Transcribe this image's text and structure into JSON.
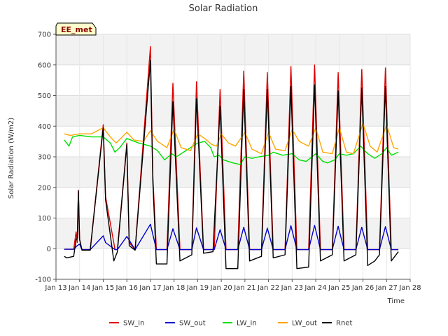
{
  "chart_data": {
    "type": "line",
    "title": "Solar Radiation",
    "xlabel": "Time",
    "ylabel": "Solar Radiation (W/m2)",
    "station_label": "EE_met",
    "ylim": [
      -100,
      700
    ],
    "xlim": [
      13,
      28
    ],
    "yticks": [
      -100,
      0,
      100,
      200,
      300,
      400,
      500,
      600,
      700
    ],
    "xticks": [
      {
        "value": 13,
        "label": "Jan 13"
      },
      {
        "value": 14,
        "label": "Jan 14"
      },
      {
        "value": 15,
        "label": "Jan 15"
      },
      {
        "value": 16,
        "label": "Jan 16"
      },
      {
        "value": 17,
        "label": "Jan 17"
      },
      {
        "value": 18,
        "label": "Jan 18"
      },
      {
        "value": 19,
        "label": "Jan 19"
      },
      {
        "value": 20,
        "label": "Jan 20"
      },
      {
        "value": 21,
        "label": "Jan 21"
      },
      {
        "value": 22,
        "label": "Jan 22"
      },
      {
        "value": 23,
        "label": "Jan 23"
      },
      {
        "value": 24,
        "label": "Jan 24"
      },
      {
        "value": 25,
        "label": "Jan 25"
      },
      {
        "value": 26,
        "label": "Jan 26"
      },
      {
        "value": 27,
        "label": "Jan 27"
      },
      {
        "value": 28,
        "label": "Jan 28"
      }
    ],
    "grid": true,
    "legend_position": "bottom",
    "series": [
      {
        "name": "SW_in",
        "color": "#e00000",
        "points": [
          [
            13.35,
            -2
          ],
          [
            13.75,
            -2
          ],
          [
            13.85,
            55
          ],
          [
            13.9,
            20
          ],
          [
            13.95,
            190
          ],
          [
            14.0,
            30
          ],
          [
            14.1,
            -3
          ],
          [
            14.45,
            -3
          ],
          [
            15.0,
            405
          ],
          [
            15.1,
            170
          ],
          [
            15.5,
            -3
          ],
          [
            15.6,
            -3
          ],
          [
            16.0,
            345
          ],
          [
            16.1,
            20
          ],
          [
            16.35,
            -3
          ],
          [
            17.0,
            660
          ],
          [
            17.1,
            240
          ],
          [
            17.25,
            -3
          ],
          [
            17.7,
            -3
          ],
          [
            17.95,
            540
          ],
          [
            18.25,
            -3
          ],
          [
            18.75,
            -3
          ],
          [
            18.95,
            545
          ],
          [
            19.25,
            -3
          ],
          [
            19.7,
            -3
          ],
          [
            19.95,
            520
          ],
          [
            20.2,
            -3
          ],
          [
            20.7,
            -3
          ],
          [
            20.95,
            580
          ],
          [
            21.2,
            -3
          ],
          [
            21.7,
            -3
          ],
          [
            21.95,
            575
          ],
          [
            22.2,
            -3
          ],
          [
            22.7,
            -3
          ],
          [
            22.95,
            595
          ],
          [
            23.2,
            -3
          ],
          [
            23.7,
            -3
          ],
          [
            23.95,
            600
          ],
          [
            24.2,
            -3
          ],
          [
            24.7,
            -3
          ],
          [
            24.95,
            575
          ],
          [
            25.2,
            -3
          ],
          [
            25.7,
            -3
          ],
          [
            25.95,
            585
          ],
          [
            26.2,
            -3
          ],
          [
            26.7,
            -3
          ],
          [
            26.95,
            590
          ],
          [
            27.2,
            -3
          ],
          [
            27.5,
            -3
          ]
        ]
      },
      {
        "name": "SW_out",
        "color": "#0000cc",
        "points": [
          [
            13.35,
            -2
          ],
          [
            13.75,
            -2
          ],
          [
            13.9,
            10
          ],
          [
            14.0,
            15
          ],
          [
            14.1,
            -3
          ],
          [
            14.45,
            -3
          ],
          [
            15.0,
            42
          ],
          [
            15.1,
            20
          ],
          [
            15.5,
            -3
          ],
          [
            15.6,
            -3
          ],
          [
            16.0,
            40
          ],
          [
            16.35,
            -3
          ],
          [
            17.0,
            80
          ],
          [
            17.25,
            -3
          ],
          [
            17.7,
            -3
          ],
          [
            17.95,
            65
          ],
          [
            18.25,
            -3
          ],
          [
            18.75,
            -3
          ],
          [
            18.95,
            68
          ],
          [
            19.25,
            -3
          ],
          [
            19.7,
            -3
          ],
          [
            19.95,
            62
          ],
          [
            20.2,
            -3
          ],
          [
            20.7,
            -3
          ],
          [
            20.95,
            70
          ],
          [
            21.2,
            -3
          ],
          [
            21.7,
            -3
          ],
          [
            21.95,
            67
          ],
          [
            22.2,
            -3
          ],
          [
            22.7,
            -3
          ],
          [
            22.95,
            75
          ],
          [
            23.2,
            -3
          ],
          [
            23.7,
            -3
          ],
          [
            23.95,
            76
          ],
          [
            24.2,
            -3
          ],
          [
            24.7,
            -3
          ],
          [
            24.95,
            73
          ],
          [
            25.2,
            -3
          ],
          [
            25.7,
            -3
          ],
          [
            25.95,
            70
          ],
          [
            26.2,
            -3
          ],
          [
            26.7,
            -3
          ],
          [
            26.95,
            72
          ],
          [
            27.2,
            -3
          ],
          [
            27.5,
            -3
          ]
        ]
      },
      {
        "name": "LW_in",
        "color": "#00e000",
        "points": [
          [
            13.35,
            355
          ],
          [
            13.55,
            335
          ],
          [
            13.7,
            365
          ],
          [
            14.0,
            370
          ],
          [
            14.5,
            365
          ],
          [
            15.0,
            365
          ],
          [
            15.3,
            345
          ],
          [
            15.5,
            315
          ],
          [
            15.7,
            330
          ],
          [
            16.0,
            360
          ],
          [
            16.5,
            345
          ],
          [
            17.0,
            335
          ],
          [
            17.3,
            320
          ],
          [
            17.6,
            290
          ],
          [
            17.9,
            310
          ],
          [
            18.1,
            300
          ],
          [
            18.4,
            315
          ],
          [
            18.7,
            330
          ],
          [
            19.0,
            345
          ],
          [
            19.3,
            350
          ],
          [
            19.55,
            330
          ],
          [
            19.7,
            300
          ],
          [
            19.9,
            305
          ],
          [
            20.1,
            290
          ],
          [
            20.5,
            280
          ],
          [
            20.8,
            275
          ],
          [
            21.0,
            300
          ],
          [
            21.3,
            295
          ],
          [
            21.6,
            300
          ],
          [
            22.0,
            305
          ],
          [
            22.2,
            315
          ],
          [
            22.6,
            305
          ],
          [
            23.0,
            310
          ],
          [
            23.3,
            290
          ],
          [
            23.6,
            285
          ],
          [
            24.0,
            310
          ],
          [
            24.3,
            285
          ],
          [
            24.5,
            280
          ],
          [
            24.8,
            290
          ],
          [
            25.0,
            310
          ],
          [
            25.3,
            305
          ],
          [
            25.6,
            310
          ],
          [
            25.9,
            335
          ],
          [
            26.2,
            310
          ],
          [
            26.5,
            295
          ],
          [
            26.8,
            310
          ],
          [
            27.0,
            330
          ],
          [
            27.2,
            305
          ],
          [
            27.5,
            315
          ]
        ]
      },
      {
        "name": "LW_out",
        "color": "#ffa500",
        "points": [
          [
            13.35,
            375
          ],
          [
            13.6,
            370
          ],
          [
            14.0,
            375
          ],
          [
            14.5,
            375
          ],
          [
            15.0,
            395
          ],
          [
            15.3,
            365
          ],
          [
            15.55,
            345
          ],
          [
            16.0,
            380
          ],
          [
            16.3,
            355
          ],
          [
            16.7,
            350
          ],
          [
            17.0,
            385
          ],
          [
            17.3,
            350
          ],
          [
            17.7,
            330
          ],
          [
            18.0,
            390
          ],
          [
            18.3,
            330
          ],
          [
            18.7,
            320
          ],
          [
            19.0,
            375
          ],
          [
            19.3,
            360
          ],
          [
            19.6,
            340
          ],
          [
            19.8,
            335
          ],
          [
            20.0,
            375
          ],
          [
            20.3,
            345
          ],
          [
            20.6,
            335
          ],
          [
            21.0,
            380
          ],
          [
            21.3,
            325
          ],
          [
            21.7,
            310
          ],
          [
            22.0,
            380
          ],
          [
            22.3,
            325
          ],
          [
            22.7,
            320
          ],
          [
            23.0,
            390
          ],
          [
            23.3,
            350
          ],
          [
            23.7,
            335
          ],
          [
            24.0,
            395
          ],
          [
            24.3,
            315
          ],
          [
            24.7,
            310
          ],
          [
            25.0,
            395
          ],
          [
            25.3,
            315
          ],
          [
            25.6,
            310
          ],
          [
            26.0,
            410
          ],
          [
            26.3,
            335
          ],
          [
            26.6,
            315
          ],
          [
            27.0,
            405
          ],
          [
            27.3,
            330
          ],
          [
            27.5,
            325
          ]
        ]
      },
      {
        "name": "Rnet",
        "color": "#000000",
        "points": [
          [
            13.35,
            -25
          ],
          [
            13.45,
            -30
          ],
          [
            13.75,
            -25
          ],
          [
            13.85,
            30
          ],
          [
            13.9,
            35
          ],
          [
            13.95,
            190
          ],
          [
            14.0,
            30
          ],
          [
            14.1,
            -5
          ],
          [
            14.45,
            -5
          ],
          [
            15.0,
            395
          ],
          [
            15.1,
            160
          ],
          [
            15.45,
            -40
          ],
          [
            15.6,
            -10
          ],
          [
            16.0,
            340
          ],
          [
            16.1,
            10
          ],
          [
            16.35,
            -5
          ],
          [
            17.0,
            615
          ],
          [
            17.1,
            220
          ],
          [
            17.25,
            -50
          ],
          [
            17.7,
            -50
          ],
          [
            17.95,
            480
          ],
          [
            18.25,
            -40
          ],
          [
            18.75,
            -20
          ],
          [
            18.95,
            490
          ],
          [
            19.25,
            -15
          ],
          [
            19.65,
            -10
          ],
          [
            19.95,
            465
          ],
          [
            20.2,
            -65
          ],
          [
            20.7,
            -65
          ],
          [
            20.95,
            520
          ],
          [
            21.2,
            -40
          ],
          [
            21.7,
            -25
          ],
          [
            21.95,
            520
          ],
          [
            22.2,
            -30
          ],
          [
            22.7,
            -20
          ],
          [
            22.95,
            530
          ],
          [
            23.2,
            -65
          ],
          [
            23.7,
            -60
          ],
          [
            23.95,
            535
          ],
          [
            24.2,
            -40
          ],
          [
            24.7,
            -20
          ],
          [
            24.95,
            515
          ],
          [
            25.2,
            -40
          ],
          [
            25.7,
            -20
          ],
          [
            25.95,
            525
          ],
          [
            26.2,
            -55
          ],
          [
            26.5,
            -40
          ],
          [
            26.7,
            -20
          ],
          [
            26.95,
            530
          ],
          [
            27.2,
            -40
          ],
          [
            27.5,
            -10
          ]
        ]
      }
    ]
  }
}
